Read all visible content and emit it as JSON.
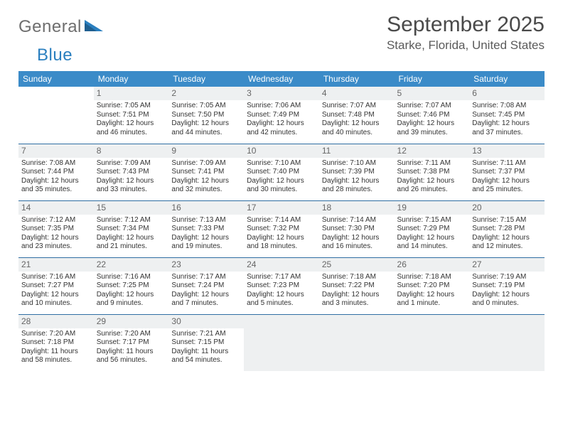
{
  "logo": {
    "word1": "General",
    "word2": "Blue"
  },
  "title": "September 2025",
  "location": "Starke, Florida, United States",
  "colors": {
    "header_bg": "#3b8bc8",
    "header_text": "#ffffff",
    "row_border": "#2f6ea3",
    "daynum_bg": "#eef0f1",
    "logo_gray": "#6e6e6e",
    "logo_blue": "#2a7fbf"
  },
  "weekdays": [
    "Sunday",
    "Monday",
    "Tuesday",
    "Wednesday",
    "Thursday",
    "Friday",
    "Saturday"
  ],
  "weeks": [
    [
      {
        "day": "",
        "lines": []
      },
      {
        "day": "1",
        "lines": [
          "Sunrise: 7:05 AM",
          "Sunset: 7:51 PM",
          "Daylight: 12 hours",
          "and 46 minutes."
        ]
      },
      {
        "day": "2",
        "lines": [
          "Sunrise: 7:05 AM",
          "Sunset: 7:50 PM",
          "Daylight: 12 hours",
          "and 44 minutes."
        ]
      },
      {
        "day": "3",
        "lines": [
          "Sunrise: 7:06 AM",
          "Sunset: 7:49 PM",
          "Daylight: 12 hours",
          "and 42 minutes."
        ]
      },
      {
        "day": "4",
        "lines": [
          "Sunrise: 7:07 AM",
          "Sunset: 7:48 PM",
          "Daylight: 12 hours",
          "and 40 minutes."
        ]
      },
      {
        "day": "5",
        "lines": [
          "Sunrise: 7:07 AM",
          "Sunset: 7:46 PM",
          "Daylight: 12 hours",
          "and 39 minutes."
        ]
      },
      {
        "day": "6",
        "lines": [
          "Sunrise: 7:08 AM",
          "Sunset: 7:45 PM",
          "Daylight: 12 hours",
          "and 37 minutes."
        ]
      }
    ],
    [
      {
        "day": "7",
        "lines": [
          "Sunrise: 7:08 AM",
          "Sunset: 7:44 PM",
          "Daylight: 12 hours",
          "and 35 minutes."
        ]
      },
      {
        "day": "8",
        "lines": [
          "Sunrise: 7:09 AM",
          "Sunset: 7:43 PM",
          "Daylight: 12 hours",
          "and 33 minutes."
        ]
      },
      {
        "day": "9",
        "lines": [
          "Sunrise: 7:09 AM",
          "Sunset: 7:41 PM",
          "Daylight: 12 hours",
          "and 32 minutes."
        ]
      },
      {
        "day": "10",
        "lines": [
          "Sunrise: 7:10 AM",
          "Sunset: 7:40 PM",
          "Daylight: 12 hours",
          "and 30 minutes."
        ]
      },
      {
        "day": "11",
        "lines": [
          "Sunrise: 7:10 AM",
          "Sunset: 7:39 PM",
          "Daylight: 12 hours",
          "and 28 minutes."
        ]
      },
      {
        "day": "12",
        "lines": [
          "Sunrise: 7:11 AM",
          "Sunset: 7:38 PM",
          "Daylight: 12 hours",
          "and 26 minutes."
        ]
      },
      {
        "day": "13",
        "lines": [
          "Sunrise: 7:11 AM",
          "Sunset: 7:37 PM",
          "Daylight: 12 hours",
          "and 25 minutes."
        ]
      }
    ],
    [
      {
        "day": "14",
        "lines": [
          "Sunrise: 7:12 AM",
          "Sunset: 7:35 PM",
          "Daylight: 12 hours",
          "and 23 minutes."
        ]
      },
      {
        "day": "15",
        "lines": [
          "Sunrise: 7:12 AM",
          "Sunset: 7:34 PM",
          "Daylight: 12 hours",
          "and 21 minutes."
        ]
      },
      {
        "day": "16",
        "lines": [
          "Sunrise: 7:13 AM",
          "Sunset: 7:33 PM",
          "Daylight: 12 hours",
          "and 19 minutes."
        ]
      },
      {
        "day": "17",
        "lines": [
          "Sunrise: 7:14 AM",
          "Sunset: 7:32 PM",
          "Daylight: 12 hours",
          "and 18 minutes."
        ]
      },
      {
        "day": "18",
        "lines": [
          "Sunrise: 7:14 AM",
          "Sunset: 7:30 PM",
          "Daylight: 12 hours",
          "and 16 minutes."
        ]
      },
      {
        "day": "19",
        "lines": [
          "Sunrise: 7:15 AM",
          "Sunset: 7:29 PM",
          "Daylight: 12 hours",
          "and 14 minutes."
        ]
      },
      {
        "day": "20",
        "lines": [
          "Sunrise: 7:15 AM",
          "Sunset: 7:28 PM",
          "Daylight: 12 hours",
          "and 12 minutes."
        ]
      }
    ],
    [
      {
        "day": "21",
        "lines": [
          "Sunrise: 7:16 AM",
          "Sunset: 7:27 PM",
          "Daylight: 12 hours",
          "and 10 minutes."
        ]
      },
      {
        "day": "22",
        "lines": [
          "Sunrise: 7:16 AM",
          "Sunset: 7:25 PM",
          "Daylight: 12 hours",
          "and 9 minutes."
        ]
      },
      {
        "day": "23",
        "lines": [
          "Sunrise: 7:17 AM",
          "Sunset: 7:24 PM",
          "Daylight: 12 hours",
          "and 7 minutes."
        ]
      },
      {
        "day": "24",
        "lines": [
          "Sunrise: 7:17 AM",
          "Sunset: 7:23 PM",
          "Daylight: 12 hours",
          "and 5 minutes."
        ]
      },
      {
        "day": "25",
        "lines": [
          "Sunrise: 7:18 AM",
          "Sunset: 7:22 PM",
          "Daylight: 12 hours",
          "and 3 minutes."
        ]
      },
      {
        "day": "26",
        "lines": [
          "Sunrise: 7:18 AM",
          "Sunset: 7:20 PM",
          "Daylight: 12 hours",
          "and 1 minute."
        ]
      },
      {
        "day": "27",
        "lines": [
          "Sunrise: 7:19 AM",
          "Sunset: 7:19 PM",
          "Daylight: 12 hours",
          "and 0 minutes."
        ]
      }
    ],
    [
      {
        "day": "28",
        "lines": [
          "Sunrise: 7:20 AM",
          "Sunset: 7:18 PM",
          "Daylight: 11 hours",
          "and 58 minutes."
        ]
      },
      {
        "day": "29",
        "lines": [
          "Sunrise: 7:20 AM",
          "Sunset: 7:17 PM",
          "Daylight: 11 hours",
          "and 56 minutes."
        ]
      },
      {
        "day": "30",
        "lines": [
          "Sunrise: 7:21 AM",
          "Sunset: 7:15 PM",
          "Daylight: 11 hours",
          "and 54 minutes."
        ]
      },
      {
        "day": "",
        "lines": [],
        "trailing": true
      },
      {
        "day": "",
        "lines": [],
        "trailing": true
      },
      {
        "day": "",
        "lines": [],
        "trailing": true
      },
      {
        "day": "",
        "lines": [],
        "trailing": true
      }
    ]
  ]
}
